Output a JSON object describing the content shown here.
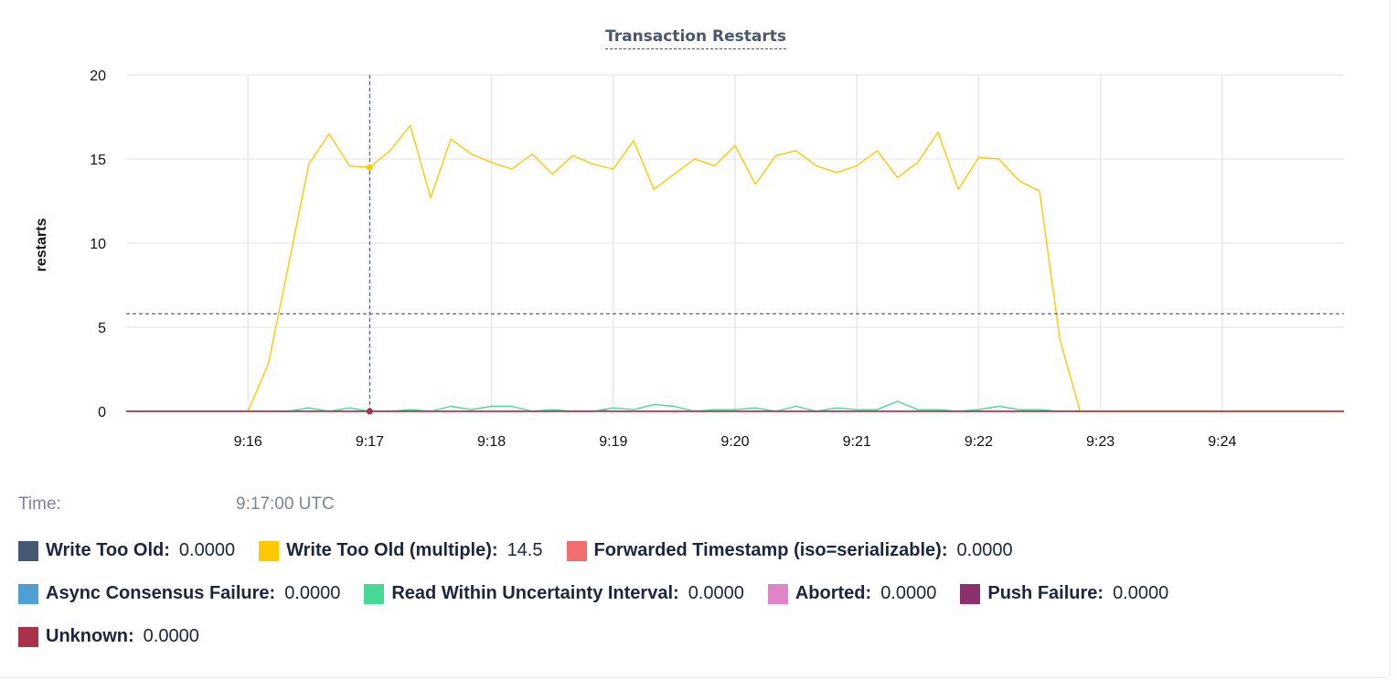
{
  "chart_data": {
    "type": "line",
    "title": "Transaction Restarts",
    "ylabel": "restarts",
    "xlabel": "",
    "ylim": [
      0,
      20
    ],
    "xlim": [
      "9:15:00",
      "9:25:00"
    ],
    "y_ticks": [
      0,
      5,
      10,
      15,
      20
    ],
    "x_ticks": [
      "9:16",
      "9:17",
      "9:18",
      "9:19",
      "9:20",
      "9:21",
      "9:22",
      "9:23",
      "9:24"
    ],
    "grid": true,
    "legend_placement": "bottom",
    "hover": {
      "time": "9:17:00",
      "value_line": 5.8
    },
    "series": [
      {
        "name": "Write Too Old (multiple)",
        "color": "#ffc800",
        "points": [
          [
            "9:16:00",
            0
          ],
          [
            "9:16:10",
            2.8
          ],
          [
            "9:16:20",
            8.7
          ],
          [
            "9:16:30",
            14.7
          ],
          [
            "9:16:40",
            16.5
          ],
          [
            "9:16:50",
            14.6
          ],
          [
            "9:17:00",
            14.5
          ],
          [
            "9:17:10",
            15.5
          ],
          [
            "9:17:20",
            17.0
          ],
          [
            "9:17:30",
            12.7
          ],
          [
            "9:17:40",
            16.2
          ],
          [
            "9:17:50",
            15.3
          ],
          [
            "9:18:00",
            14.8
          ],
          [
            "9:18:10",
            14.4
          ],
          [
            "9:18:20",
            15.3
          ],
          [
            "9:18:30",
            14.1
          ],
          [
            "9:18:40",
            15.2
          ],
          [
            "9:18:50",
            14.7
          ],
          [
            "9:19:00",
            14.4
          ],
          [
            "9:19:10",
            16.1
          ],
          [
            "9:19:20",
            13.2
          ],
          [
            "9:19:30",
            14.1
          ],
          [
            "9:19:40",
            15.0
          ],
          [
            "9:19:50",
            14.6
          ],
          [
            "9:20:00",
            15.8
          ],
          [
            "9:20:10",
            13.5
          ],
          [
            "9:20:20",
            15.2
          ],
          [
            "9:20:30",
            15.5
          ],
          [
            "9:20:40",
            14.6
          ],
          [
            "9:20:50",
            14.2
          ],
          [
            "9:21:00",
            14.6
          ],
          [
            "9:21:10",
            15.5
          ],
          [
            "9:21:20",
            13.9
          ],
          [
            "9:21:30",
            14.8
          ],
          [
            "9:21:40",
            16.6
          ],
          [
            "9:21:50",
            13.2
          ],
          [
            "9:22:00",
            15.1
          ],
          [
            "9:22:10",
            15.0
          ],
          [
            "9:22:20",
            13.7
          ],
          [
            "9:22:30",
            13.1
          ],
          [
            "9:22:40",
            4.3
          ],
          [
            "9:22:50",
            0
          ],
          [
            "9:23:00",
            0
          ],
          [
            "9:24:00",
            0
          ],
          [
            "9:25:00",
            0
          ]
        ]
      },
      {
        "name": "Read Within Uncertainty Interval",
        "color": "#46d995",
        "points": [
          [
            "9:15:00",
            0
          ],
          [
            "9:16:20",
            0
          ],
          [
            "9:16:30",
            0.2
          ],
          [
            "9:16:40",
            0
          ],
          [
            "9:16:50",
            0.2
          ],
          [
            "9:17:00",
            0
          ],
          [
            "9:17:10",
            0
          ],
          [
            "9:17:20",
            0.1
          ],
          [
            "9:17:30",
            0
          ],
          [
            "9:17:40",
            0.3
          ],
          [
            "9:17:50",
            0.1
          ],
          [
            "9:18:00",
            0.3
          ],
          [
            "9:18:10",
            0.3
          ],
          [
            "9:18:20",
            0
          ],
          [
            "9:18:30",
            0.1
          ],
          [
            "9:18:40",
            0
          ],
          [
            "9:18:50",
            0
          ],
          [
            "9:19:00",
            0.2
          ],
          [
            "9:19:10",
            0.1
          ],
          [
            "9:19:20",
            0.4
          ],
          [
            "9:19:30",
            0.3
          ],
          [
            "9:19:40",
            0
          ],
          [
            "9:19:50",
            0.1
          ],
          [
            "9:20:00",
            0.1
          ],
          [
            "9:20:10",
            0.2
          ],
          [
            "9:20:20",
            0
          ],
          [
            "9:20:30",
            0.3
          ],
          [
            "9:20:40",
            0
          ],
          [
            "9:20:50",
            0.2
          ],
          [
            "9:21:00",
            0.1
          ],
          [
            "9:21:10",
            0.1
          ],
          [
            "9:21:20",
            0.6
          ],
          [
            "9:21:30",
            0.1
          ],
          [
            "9:21:40",
            0.1
          ],
          [
            "9:21:50",
            0
          ],
          [
            "9:22:00",
            0.1
          ],
          [
            "9:22:10",
            0.3
          ],
          [
            "9:22:20",
            0.1
          ],
          [
            "9:22:30",
            0.1
          ],
          [
            "9:22:40",
            0
          ],
          [
            "9:25:00",
            0
          ]
        ]
      },
      {
        "name": "Forwarded Timestamp (iso=serializable)",
        "color": "#f26d6d",
        "points": [
          [
            "9:15:00",
            0
          ],
          [
            "9:18:50",
            0
          ],
          [
            "9:18:55",
            0.05
          ],
          [
            "9:19:00",
            0
          ],
          [
            "9:25:00",
            0
          ]
        ]
      },
      {
        "name": "Unknown",
        "color": "#a8324a",
        "points": [
          [
            "9:15:00",
            0
          ],
          [
            "9:25:00",
            0
          ]
        ]
      }
    ]
  },
  "readout": {
    "time_label": "Time:",
    "time_value": "9:17:00 UTC"
  },
  "legend": [
    {
      "name": "Write Too Old:",
      "value": "0.0000",
      "color": "#475872"
    },
    {
      "name": "Write Too Old (multiple):",
      "value": "14.5",
      "color": "#ffc800"
    },
    {
      "name": "Forwarded Timestamp (iso=serializable):",
      "value": "0.0000",
      "color": "#f26d6d"
    },
    {
      "name": "Async Consensus Failure:",
      "value": "0.0000",
      "color": "#4d9fd6"
    },
    {
      "name": "Read Within Uncertainty Interval:",
      "value": "0.0000",
      "color": "#46d995"
    },
    {
      "name": "Aborted:",
      "value": "0.0000",
      "color": "#de84c7"
    },
    {
      "name": "Push Failure:",
      "value": "0.0000",
      "color": "#8c3070"
    },
    {
      "name": "Unknown:",
      "value": "0.0000",
      "color": "#a8324a"
    }
  ]
}
